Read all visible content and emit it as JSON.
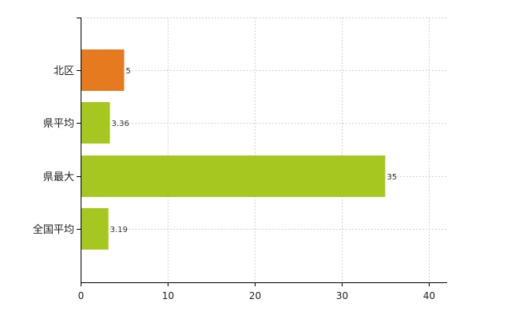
{
  "chart_data": {
    "type": "bar",
    "orientation": "horizontal",
    "categories": [
      "北区",
      "県平均",
      "県最大",
      "全国平均"
    ],
    "values": [
      5,
      3.36,
      35,
      3.19
    ],
    "data_labels": [
      "5",
      "3.36",
      "35",
      "3.19"
    ],
    "bar_colors": [
      "#e57a1f",
      "#a6c71f",
      "#a6c71f",
      "#a6c71f"
    ],
    "xlim": [
      0,
      42
    ],
    "x_ticks": [
      0,
      10,
      20,
      30,
      40
    ],
    "x_tick_labels": [
      "0",
      "10",
      "20",
      "30",
      "40"
    ],
    "grid": "vertical-and-horizontal-dashed",
    "legend": "none"
  },
  "colors": {
    "highlight": "#e57a1f",
    "default": "#a6c71f",
    "grid": "#d4d4d4",
    "axis": "#000000"
  }
}
